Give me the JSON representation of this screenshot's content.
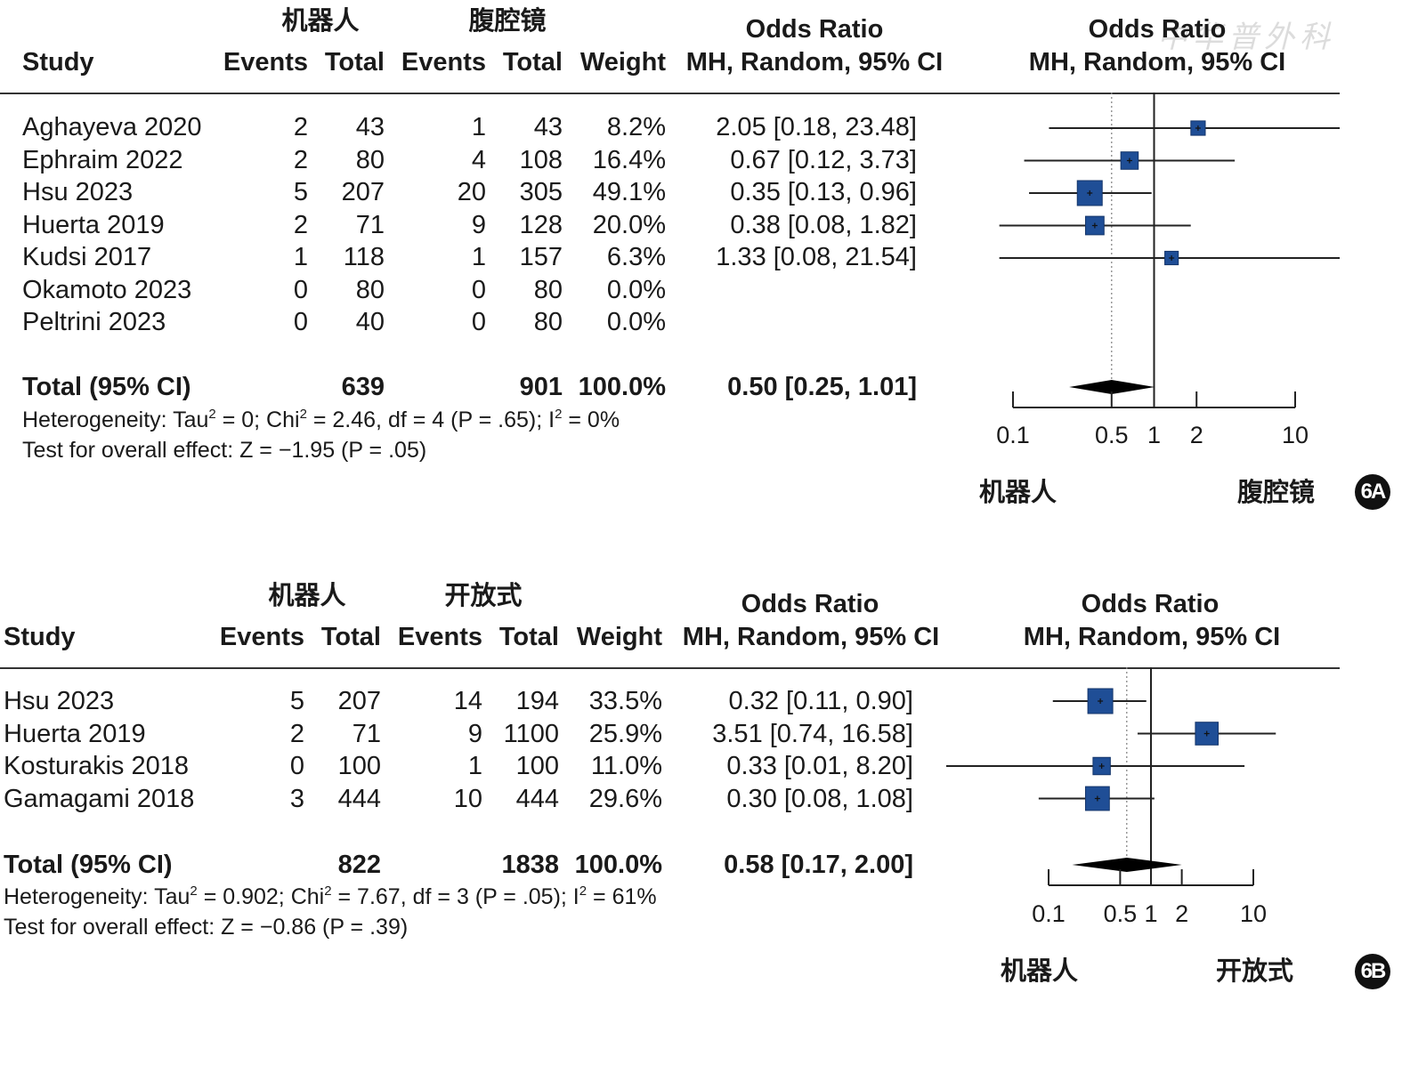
{
  "watermark": "中华普外科",
  "panels": [
    {
      "id": "6A",
      "badge": "6A",
      "group1": "机器人",
      "group2": "腹腔镜",
      "col_study": "Study",
      "col_events": "Events",
      "col_total": "Total",
      "col_weight": "Weight",
      "or_title": "Odds Ratio",
      "or_method": "MH, Random, 95% CI",
      "studies": [
        {
          "study": "Aghayeva 2020",
          "e1": "2",
          "n1": "43",
          "e2": "1",
          "n2": "43",
          "weight": "8.2%",
          "ci": "2.05 [0.18, 23.48]"
        },
        {
          "study": "Ephraim 2022",
          "e1": "2",
          "n1": "80",
          "e2": "4",
          "n2": "108",
          "weight": "16.4%",
          "ci": "0.67 [0.12,  3.73]"
        },
        {
          "study": "Hsu 2023",
          "e1": "5",
          "n1": "207",
          "e2": "20",
          "n2": "305",
          "weight": "49.1%",
          "ci": "0.35 [0.13,  0.96]"
        },
        {
          "study": "Huerta 2019",
          "e1": "2",
          "n1": "71",
          "e2": "9",
          "n2": "128",
          "weight": "20.0%",
          "ci": "0.38 [0.08,  1.82]"
        },
        {
          "study": "Kudsi 2017",
          "e1": "1",
          "n1": "118",
          "e2": "1",
          "n2": "157",
          "weight": "6.3%",
          "ci": "1.33 [0.08, 21.54]"
        },
        {
          "study": "Okamoto 2023",
          "e1": "0",
          "n1": "80",
          "e2": "0",
          "n2": "80",
          "weight": "0.0%",
          "ci": ""
        },
        {
          "study": "Peltrini 2023",
          "e1": "0",
          "n1": "40",
          "e2": "0",
          "n2": "80",
          "weight": "0.0%",
          "ci": ""
        }
      ],
      "total": {
        "label": "Total (95% CI)",
        "n1": "639",
        "n2": "901",
        "weight": "100.0%",
        "ci": "0.50 [0.25,  1.01]"
      },
      "heterogeneity": {
        "pre": "Heterogeneity: Tau",
        "a": " = 0; Chi",
        "b": " = 2.46, df = 4 (P = .65); I",
        "c": " = 0%"
      },
      "overall": "Test for overall effect: Z = −1.95 (P = .05)",
      "axis_ticks": [
        "0.1",
        "0.5",
        "1",
        "2",
        "10"
      ],
      "favours_left": "机器人",
      "favours_right": "腹腔镜"
    },
    {
      "id": "6B",
      "badge": "6B",
      "group1": "机器人",
      "group2": "开放式",
      "col_study": "Study",
      "col_events": "Events",
      "col_total": "Total",
      "col_weight": "Weight",
      "or_title": "Odds Ratio",
      "or_method": "MH, Random, 95% CI",
      "studies": [
        {
          "study": "Hsu 2023",
          "e1": "5",
          "n1": "207",
          "e2": "14",
          "n2": "194",
          "weight": "33.5%",
          "ci": "0.32 [0.11,  0.90]"
        },
        {
          "study": "Huerta 2019",
          "e1": "2",
          "n1": "71",
          "e2": "9",
          "n2": "1100",
          "weight": "25.9%",
          "ci": "3.51 [0.74, 16.58]"
        },
        {
          "study": "Kosturakis 2018",
          "e1": "0",
          "n1": "100",
          "e2": "1",
          "n2": "100",
          "weight": "11.0%",
          "ci": "0.33 [0.01,  8.20]"
        },
        {
          "study": "Gamagami 2018",
          "e1": "3",
          "n1": "444",
          "e2": "10",
          "n2": "444",
          "weight": "29.6%",
          "ci": "0.30 [0.08,  1.08]"
        }
      ],
      "total": {
        "label": "Total (95% CI)",
        "n1": "822",
        "n2": "1838",
        "weight": "100.0%",
        "ci": "0.58 [0.17,  2.00]"
      },
      "heterogeneity": {
        "pre": "Heterogeneity: Tau",
        "a": " = 0.902; Chi",
        "b": " = 7.67, df = 3 (P = .05); I",
        "c": " = 61%"
      },
      "overall": "Test for overall effect: Z = −0.86 (P = .39)",
      "axis_ticks": [
        "0.1",
        "0.5",
        "1",
        "2",
        "10"
      ],
      "favours_left": "机器人",
      "favours_right": "开放式"
    }
  ],
  "chart_data": [
    {
      "type": "forest",
      "title": "6A",
      "scale": "log",
      "xlim": [
        0.1,
        10
      ],
      "null_value": 1,
      "pooled_reference": 0.5,
      "studies": [
        {
          "name": "Aghayeva 2020",
          "or": 2.05,
          "lo": 0.18,
          "hi": 23.48,
          "weight": 8.2
        },
        {
          "name": "Ephraim 2022",
          "or": 0.67,
          "lo": 0.12,
          "hi": 3.73,
          "weight": 16.4
        },
        {
          "name": "Hsu 2023",
          "or": 0.35,
          "lo": 0.13,
          "hi": 0.96,
          "weight": 49.1
        },
        {
          "name": "Huerta 2019",
          "or": 0.38,
          "lo": 0.08,
          "hi": 1.82,
          "weight": 20.0
        },
        {
          "name": "Kudsi 2017",
          "or": 1.33,
          "lo": 0.08,
          "hi": 21.54,
          "weight": 6.3
        },
        {
          "name": "Okamoto 2023",
          "or": null,
          "lo": null,
          "hi": null,
          "weight": 0.0
        },
        {
          "name": "Peltrini 2023",
          "or": null,
          "lo": null,
          "hi": null,
          "weight": 0.0
        }
      ],
      "pooled": {
        "or": 0.5,
        "lo": 0.25,
        "hi": 1.01
      }
    },
    {
      "type": "forest",
      "title": "6B",
      "scale": "log",
      "xlim": [
        0.1,
        10
      ],
      "null_value": 1,
      "pooled_reference": 0.58,
      "studies": [
        {
          "name": "Hsu 2023",
          "or": 0.32,
          "lo": 0.11,
          "hi": 0.9,
          "weight": 33.5
        },
        {
          "name": "Huerta 2019",
          "or": 3.51,
          "lo": 0.74,
          "hi": 16.58,
          "weight": 25.9
        },
        {
          "name": "Kosturakis 2018",
          "or": 0.33,
          "lo": 0.01,
          "hi": 8.2,
          "weight": 11.0
        },
        {
          "name": "Gamagami 2018",
          "or": 0.3,
          "lo": 0.08,
          "hi": 1.08,
          "weight": 29.6
        }
      ],
      "pooled": {
        "or": 0.58,
        "lo": 0.17,
        "hi": 2.0
      }
    }
  ]
}
